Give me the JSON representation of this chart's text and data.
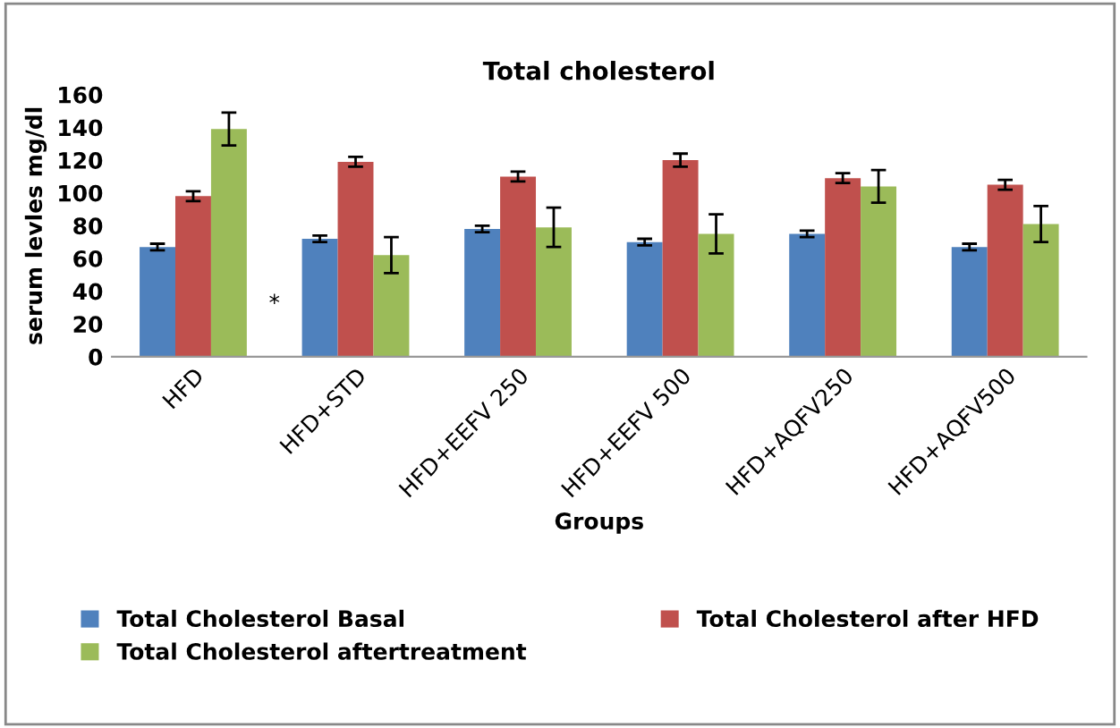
{
  "chart_data": {
    "type": "bar",
    "title": "Total cholesterol",
    "xlabel": "Groups",
    "ylabel": "serum levles mg/dl",
    "categories": [
      "HFD",
      "HFD+STD",
      "HFD+EEFV 250",
      "HFD+EEFV 500",
      "HFD+AQFV250",
      "HFD+AQFV500"
    ],
    "series": [
      {
        "name": "Total Cholesterol Basal",
        "color": "#4f81bd",
        "values": [
          67,
          72,
          78,
          70,
          75,
          67
        ],
        "errors": [
          2,
          2,
          2,
          2,
          2,
          2
        ]
      },
      {
        "name": "Total Cholesterol after HFD",
        "color": "#c0504d",
        "values": [
          98,
          119,
          110,
          120,
          109,
          105
        ],
        "errors": [
          3,
          3,
          3,
          4,
          3,
          3
        ]
      },
      {
        "name": "Total Cholesterol aftertreatment",
        "color": "#9bbb59",
        "values": [
          139,
          62,
          79,
          75,
          104,
          81
        ],
        "errors": [
          10,
          11,
          12,
          12,
          10,
          11
        ]
      }
    ],
    "annotations": [
      "*"
    ],
    "ylim": [
      0,
      160
    ],
    "yticks": [
      0,
      20,
      40,
      60,
      80,
      100,
      120,
      140,
      160
    ],
    "grid": false,
    "legend": "bottom"
  }
}
